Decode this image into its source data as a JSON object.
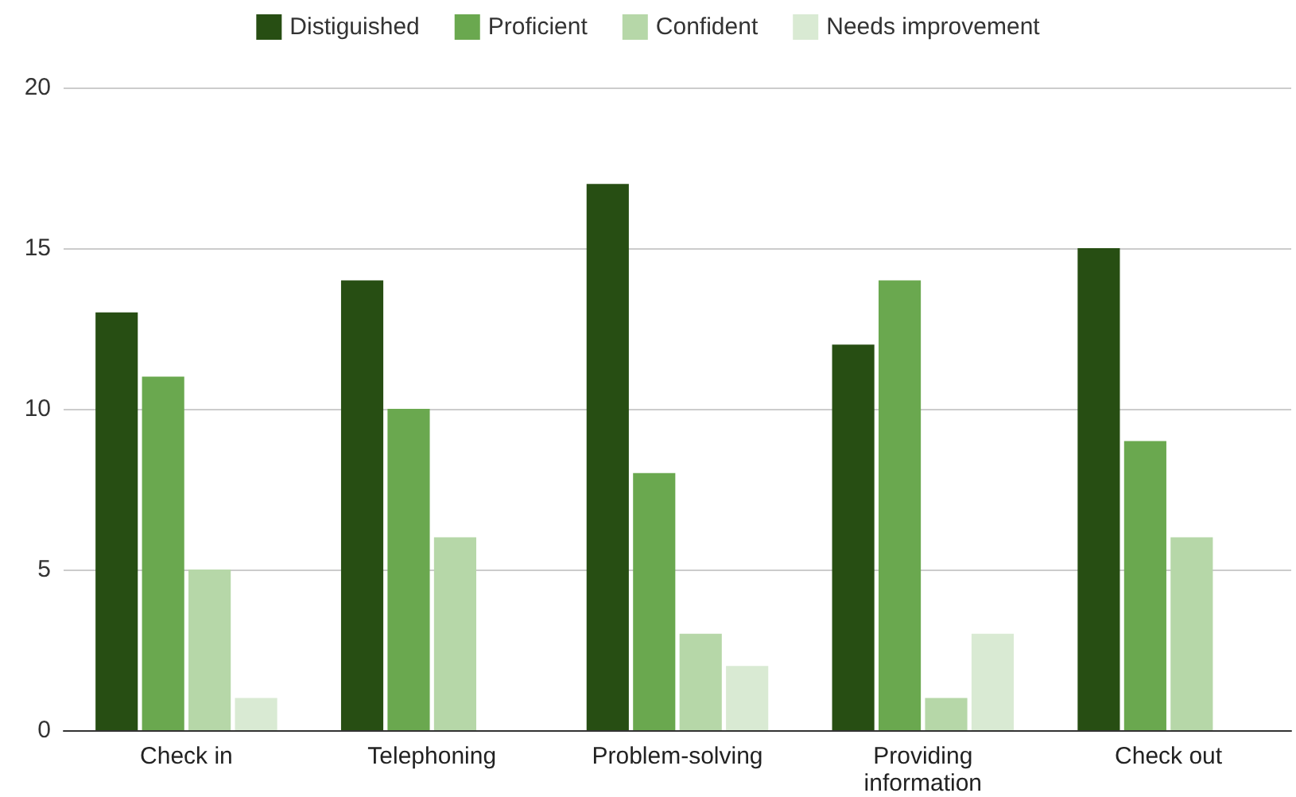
{
  "chart_data": {
    "type": "bar",
    "categories": [
      "Check in",
      "Telephoning",
      "Problem-solving",
      "Providing\ninformation",
      "Check out"
    ],
    "series": [
      {
        "name": "Distiguished",
        "color": "#274e13",
        "values": [
          13,
          14,
          17,
          12,
          15
        ]
      },
      {
        "name": "Proficient",
        "color": "#6aa84f",
        "values": [
          11,
          10,
          8,
          14,
          9
        ]
      },
      {
        "name": "Confident",
        "color": "#b6d7a8",
        "values": [
          5,
          6,
          3,
          1,
          6
        ]
      },
      {
        "name": "Needs improvement",
        "color": "#d9ead3",
        "values": [
          1,
          0,
          2,
          3,
          0
        ]
      }
    ],
    "ylim": [
      0,
      20
    ],
    "yticks": [
      0,
      5,
      10,
      15,
      20
    ],
    "grid": "y",
    "legend": "top"
  }
}
